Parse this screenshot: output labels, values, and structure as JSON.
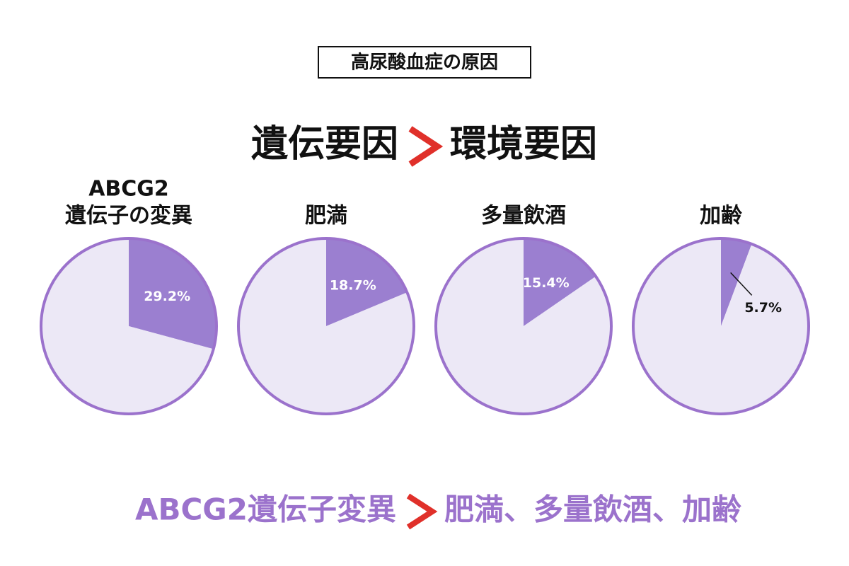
{
  "header": {
    "title": "高尿酸血症の原因",
    "headline_left": "遺伝要因",
    "headline_right": "環境要因"
  },
  "chart_data": [
    {
      "type": "pie",
      "title": [
        "ABCG2",
        "遺伝子の変異"
      ],
      "values": [
        29.2,
        70.8
      ],
      "value_labels": [
        "29.2%",
        null
      ],
      "colors": [
        "#9b7fd0",
        "#ece8f6"
      ],
      "border_color": "#9b72cc"
    },
    {
      "type": "pie",
      "title": [
        "肥満"
      ],
      "values": [
        18.7,
        81.3
      ],
      "value_labels": [
        "18.7%",
        null
      ],
      "colors": [
        "#9b7fd0",
        "#ece8f6"
      ],
      "border_color": "#9b72cc"
    },
    {
      "type": "pie",
      "title": [
        "多量飲酒"
      ],
      "values": [
        15.4,
        84.6
      ],
      "value_labels": [
        "15.4%",
        null
      ],
      "colors": [
        "#9b7fd0",
        "#ece8f6"
      ],
      "border_color": "#9b72cc"
    },
    {
      "type": "pie",
      "title": [
        "加齢"
      ],
      "values": [
        5.7,
        94.3
      ],
      "value_labels": [
        "5.7%",
        null
      ],
      "colors": [
        "#9b7fd0",
        "#ece8f6"
      ],
      "border_color": "#9b72cc"
    }
  ],
  "footer": {
    "left": "ABCG2遺伝子変異",
    "right": "肥満、多量飲酒、加齢"
  }
}
